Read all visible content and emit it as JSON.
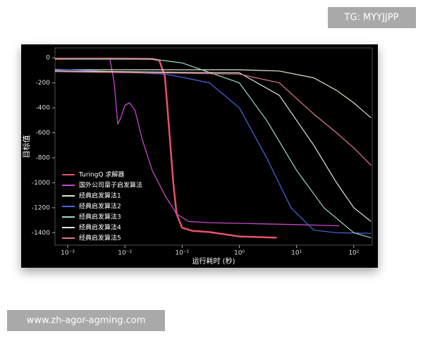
{
  "chart_data": {
    "type": "line",
    "y_label": "目标值",
    "x_label": "运行耗时 (秒)",
    "x_log": true,
    "legend": "lower left",
    "xlim": [
      0.0006,
      210
    ],
    "ylim": [
      -1500,
      80
    ],
    "xticks": [
      {
        "value": 0.001,
        "label": "10⁻³"
      },
      {
        "value": 0.01,
        "label": "10⁻²"
      },
      {
        "value": 0.1,
        "label": "10⁻¹"
      },
      {
        "value": 1,
        "label": "10⁰"
      },
      {
        "value": 10,
        "label": "10¹"
      },
      {
        "value": 100,
        "label": "10²"
      }
    ],
    "yticks": [
      0,
      -200,
      -400,
      -600,
      -800,
      -1000,
      -1200,
      -1400
    ],
    "series": [
      {
        "name": "TuringQ 求解器",
        "color": "#e8506e",
        "width": 2.5,
        "x": [
          0.0006,
          0.01,
          0.03,
          0.04,
          0.05,
          0.06,
          0.07,
          0.08,
          0.1,
          0.15,
          0.3,
          1,
          4.5
        ],
        "values": [
          -5,
          -5,
          -8,
          -20,
          -150,
          -600,
          -1000,
          -1250,
          -1360,
          -1385,
          -1395,
          -1430,
          -1440
        ]
      },
      {
        "name": "国外公司量子启发算法",
        "color": "#c548c8",
        "width": 1.3,
        "x": [
          0.0055,
          0.0065,
          0.0075,
          0.0085,
          0.01,
          0.012,
          0.015,
          0.02,
          0.03,
          0.05,
          0.08,
          0.13,
          0.3,
          1,
          10,
          55
        ],
        "values": [
          -15,
          -200,
          -530,
          -480,
          -380,
          -360,
          -420,
          -650,
          -900,
          -1100,
          -1250,
          -1310,
          -1320,
          -1325,
          -1335,
          -1345
        ]
      },
      {
        "name": "经典启发算法1",
        "color": "#dfe8c8",
        "width": 1.2,
        "x": [
          0.0006,
          1,
          5,
          20,
          50,
          100,
          200
        ],
        "values": [
          -95,
          -95,
          -105,
          -160,
          -260,
          -360,
          -480
        ]
      },
      {
        "name": "经典启发算法2",
        "color": "#4a66e0",
        "width": 1.2,
        "x": [
          0.0006,
          0.05,
          0.1,
          0.3,
          1,
          3,
          8,
          20,
          50,
          200
        ],
        "values": [
          -90,
          -130,
          -155,
          -200,
          -400,
          -800,
          -1200,
          -1380,
          -1400,
          -1405
        ]
      },
      {
        "name": "经典启发算法3",
        "color": "#9fdcc0",
        "width": 1.2,
        "x": [
          0.0006,
          0.03,
          0.1,
          1,
          3,
          10,
          30,
          100,
          200
        ],
        "values": [
          -10,
          -10,
          -40,
          -200,
          -500,
          -900,
          -1200,
          -1400,
          -1440
        ]
      },
      {
        "name": "经典启发算法4",
        "color": "#e6e6e6",
        "width": 1.2,
        "x": [
          0.0006,
          1,
          5,
          20,
          50,
          100,
          200
        ],
        "values": [
          -105,
          -120,
          -300,
          -700,
          -1000,
          -1200,
          -1310
        ]
      },
      {
        "name": "经典启发算法5",
        "color": "#e07a86",
        "width": 1.2,
        "x": [
          0.0006,
          1,
          5,
          20,
          50,
          100,
          200
        ],
        "values": [
          -110,
          -130,
          -200,
          -450,
          -600,
          -720,
          -860
        ]
      }
    ]
  },
  "watermarks": [
    "TG: MYYJJPP",
    "www.zh-agor-agming.com"
  ]
}
